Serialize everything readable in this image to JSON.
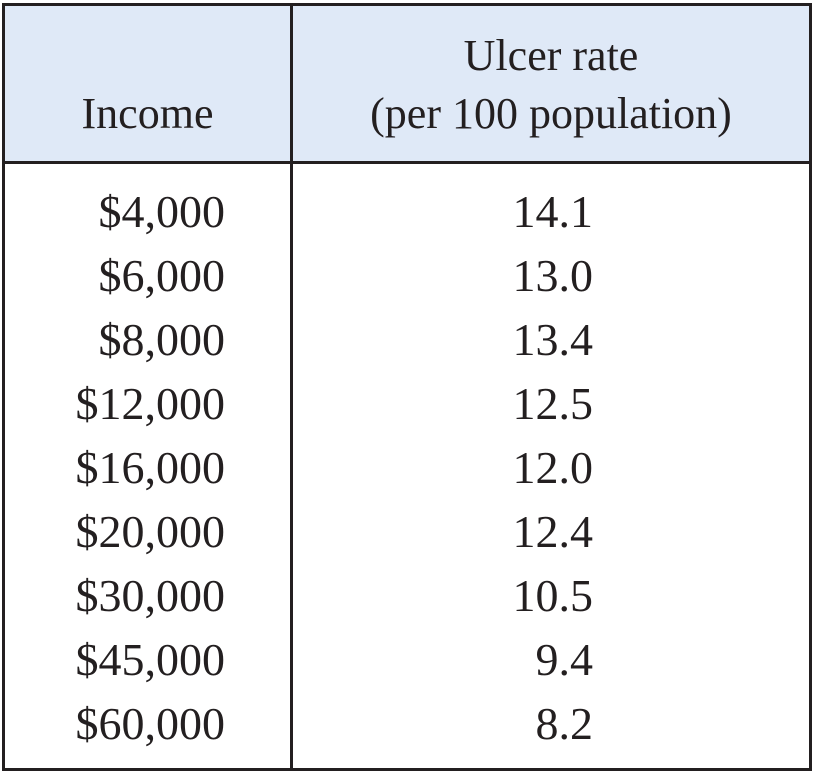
{
  "chart_data": {
    "type": "table",
    "columns": [
      "Income",
      "Ulcer rate (per 100 population)"
    ],
    "header": {
      "income": "Income",
      "rate_line1": "Ulcer rate",
      "rate_line2": "(per 100 population)"
    },
    "rows": [
      {
        "income": "$4,000",
        "rate": "14.1"
      },
      {
        "income": "$6,000",
        "rate": "13.0"
      },
      {
        "income": "$8,000",
        "rate": "13.4"
      },
      {
        "income": "$12,000",
        "rate": "12.5"
      },
      {
        "income": "$16,000",
        "rate": "12.0"
      },
      {
        "income": "$20,000",
        "rate": "12.4"
      },
      {
        "income": "$30,000",
        "rate": "10.5"
      },
      {
        "income": "$45,000",
        "rate": "9.4"
      },
      {
        "income": "$60,000",
        "rate": "8.2"
      }
    ],
    "x": [
      4000,
      6000,
      8000,
      12000,
      16000,
      20000,
      30000,
      45000,
      60000
    ],
    "y": [
      14.1,
      13.0,
      13.4,
      12.5,
      12.0,
      12.4,
      10.5,
      9.4,
      8.2
    ]
  },
  "colors": {
    "header_bg": "#dfe9f7",
    "border": "#231f20",
    "text": "#231f20"
  }
}
